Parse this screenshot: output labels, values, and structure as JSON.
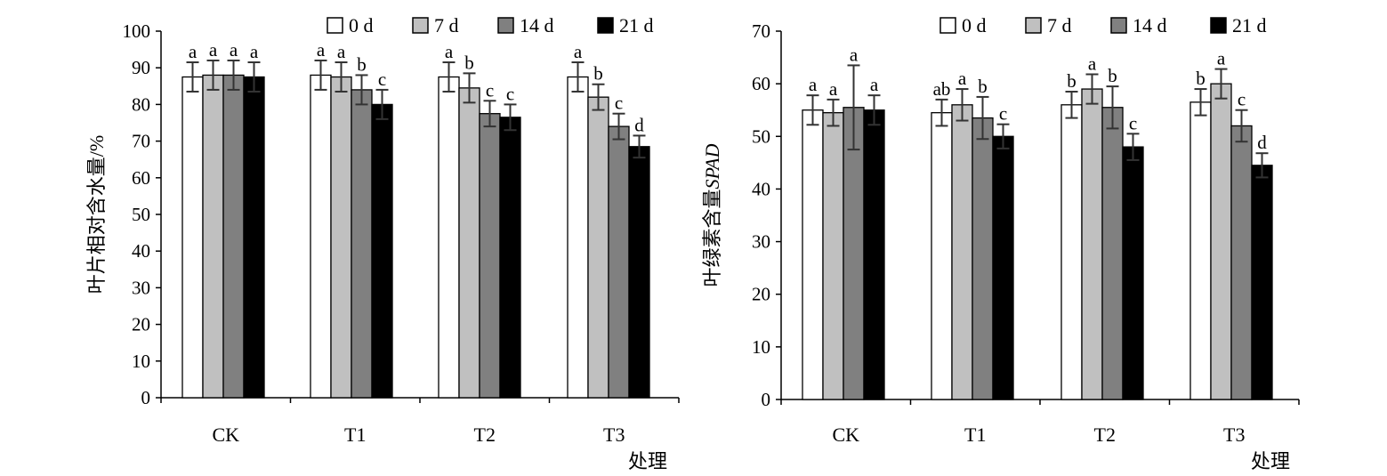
{
  "colors": {
    "0 d": "#ffffff",
    "7 d": "#c0c0c0",
    "14 d": "#808080",
    "21 d": "#000000",
    "axis": "#000000",
    "error_bar": "#333333"
  },
  "chart_data": [
    {
      "type": "bar",
      "ylabel": "叶片相对含水量/%",
      "xlabel": "处理",
      "categories": [
        "CK",
        "T1",
        "T2",
        "T3"
      ],
      "ylim": [
        0,
        100
      ],
      "yticks": [
        0,
        10,
        20,
        30,
        40,
        50,
        60,
        70,
        80,
        90,
        100
      ],
      "legend": [
        "0 d",
        "7 d",
        "14 d",
        "21 d"
      ],
      "legend_position": "top",
      "grid": false,
      "series": [
        {
          "name": "0 d",
          "values": [
            87.5,
            88.0,
            87.5,
            87.5
          ],
          "errors": [
            4.0,
            4.0,
            4.0,
            4.0
          ],
          "labels": [
            "a",
            "a",
            "a",
            "a"
          ]
        },
        {
          "name": "7 d",
          "values": [
            88.0,
            87.5,
            84.5,
            82.0
          ],
          "errors": [
            4.0,
            4.0,
            4.0,
            3.5
          ],
          "labels": [
            "a",
            "a",
            "b",
            "b"
          ]
        },
        {
          "name": "14 d",
          "values": [
            88.0,
            84.0,
            77.5,
            74.0
          ],
          "errors": [
            4.0,
            4.0,
            3.5,
            3.5
          ],
          "labels": [
            "a",
            "b",
            "c",
            "c"
          ]
        },
        {
          "name": "21 d",
          "values": [
            87.5,
            80.0,
            76.5,
            68.5
          ],
          "errors": [
            4.0,
            4.0,
            3.5,
            3.0
          ],
          "labels": [
            "a",
            "c",
            "c",
            "d"
          ]
        }
      ]
    },
    {
      "type": "bar",
      "ylabel": "叶绿素含量SPAD",
      "xlabel": "处理",
      "categories": [
        "CK",
        "T1",
        "T2",
        "T3"
      ],
      "ylim": [
        0,
        70
      ],
      "yticks": [
        0,
        10,
        20,
        30,
        40,
        50,
        60,
        70
      ],
      "legend": [
        "0 d",
        "7 d",
        "14 d",
        "21 d"
      ],
      "legend_position": "top",
      "grid": false,
      "series": [
        {
          "name": "0 d",
          "values": [
            55.0,
            54.5,
            56.0,
            56.5
          ],
          "errors": [
            2.8,
            2.5,
            2.5,
            2.5
          ],
          "labels": [
            "a",
            "ab",
            "b",
            "b"
          ]
        },
        {
          "name": "7 d",
          "values": [
            54.5,
            56.0,
            59.0,
            60.0
          ],
          "errors": [
            2.5,
            3.0,
            2.8,
            2.8
          ],
          "labels": [
            "a",
            "a",
            "a",
            "a"
          ]
        },
        {
          "name": "14 d",
          "values": [
            55.5,
            53.5,
            55.5,
            52.0
          ],
          "errors": [
            8.0,
            4.0,
            4.0,
            3.0
          ],
          "labels": [
            "a",
            "b",
            "b",
            "c"
          ]
        },
        {
          "name": "21 d",
          "values": [
            55.0,
            50.0,
            48.0,
            44.5
          ],
          "errors": [
            2.8,
            2.3,
            2.5,
            2.3
          ],
          "labels": [
            "a",
            "c",
            "c",
            "d"
          ]
        }
      ]
    }
  ]
}
